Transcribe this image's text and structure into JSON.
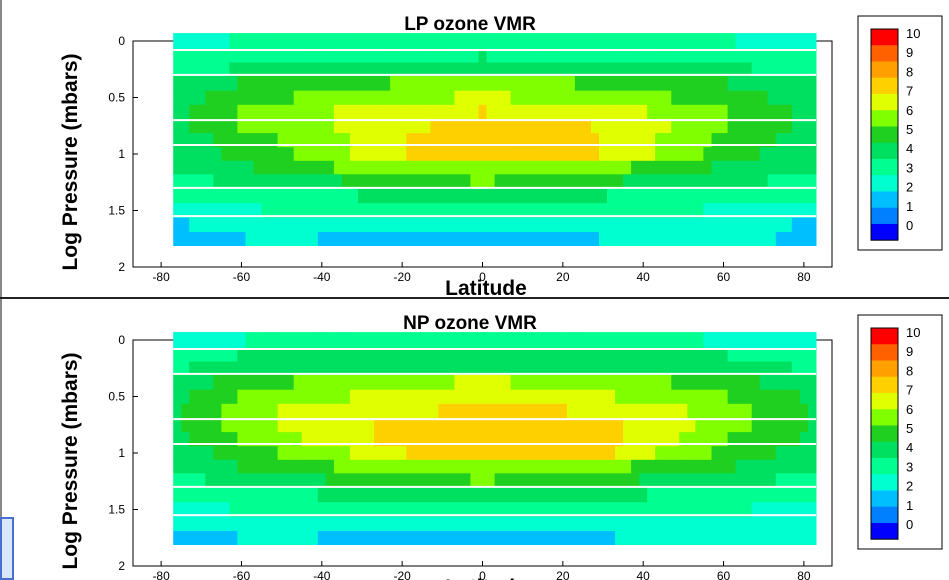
{
  "colors": {
    "scale": [
      "#0000ff",
      "#0080ff",
      "#00bfff",
      "#00ffd0",
      "#00ff90",
      "#00e060",
      "#20d020",
      "#80ff00",
      "#e0ff00",
      "#ffd000",
      "#ff8000",
      "#ff0000"
    ]
  },
  "chart_data": [
    {
      "type": "heatmap",
      "title": "LP ozone VMR",
      "xlabel": "Latitude",
      "ylabel": "Log Pressure (mbars)",
      "xlim": [
        -87,
        87
      ],
      "ylim": [
        0,
        2
      ],
      "x_ticks": [
        "-80",
        "-60",
        "-40",
        "-20",
        "0",
        "20",
        "40",
        "60",
        "80"
      ],
      "y_ticks": [
        "0",
        "0.5",
        "1",
        "1.5",
        "2"
      ],
      "legend_labels": [
        "10",
        "9",
        "8",
        "7",
        "6",
        "5",
        "4",
        "3",
        "2",
        "1",
        "0"
      ],
      "legend_placement": "right",
      "lat_range": [
        -77,
        83
      ],
      "rows": [
        {
          "y": 0.0,
          "profile": [
            [
              -77,
              3
            ],
            [
              -55,
              3.8
            ],
            [
              50,
              3.8
            ],
            [
              83,
              3
            ]
          ]
        },
        {
          "y": 0.14,
          "profile": [
            [
              -77,
              3.8
            ],
            [
              -60,
              4.2
            ],
            [
              0,
              4.5
            ],
            [
              60,
              4.2
            ],
            [
              83,
              3.8
            ]
          ]
        },
        {
          "y": 0.24,
          "profile": [
            [
              -77,
              4.2
            ],
            [
              -50,
              4.8
            ],
            [
              0,
              5
            ],
            [
              50,
              4.8
            ],
            [
              83,
              4.2
            ]
          ]
        },
        {
          "y": 0.38,
          "profile": [
            [
              -77,
              4.6
            ],
            [
              -60,
              5.5
            ],
            [
              -30,
              6.4
            ],
            [
              0,
              6.8
            ],
            [
              30,
              6.4
            ],
            [
              60,
              5.5
            ],
            [
              83,
              4.6
            ]
          ]
        },
        {
          "y": 0.5,
          "profile": [
            [
              -77,
              5
            ],
            [
              -60,
              6
            ],
            [
              -30,
              7.2
            ],
            [
              0,
              7.6
            ],
            [
              30,
              7.2
            ],
            [
              60,
              6
            ],
            [
              83,
              5
            ]
          ]
        },
        {
          "y": 0.63,
          "profile": [
            [
              -77,
              5.2
            ],
            [
              -60,
              6.5
            ],
            [
              -35,
              7.6
            ],
            [
              -10,
              8.2
            ],
            [
              0,
              8.5
            ],
            [
              20,
              8.2
            ],
            [
              40,
              7.6
            ],
            [
              60,
              6.5
            ],
            [
              83,
              5.2
            ]
          ]
        },
        {
          "y": 0.75,
          "profile": [
            [
              -77,
              5.2
            ],
            [
              -60,
              6.5
            ],
            [
              -35,
              7.6
            ],
            [
              -10,
              8.6
            ],
            [
              0,
              9.0
            ],
            [
              25,
              8.6
            ],
            [
              45,
              7.6
            ],
            [
              60,
              6.5
            ],
            [
              83,
              5.2
            ]
          ]
        },
        {
          "y": 0.88,
          "profile": [
            [
              -77,
              5
            ],
            [
              -55,
              6.2
            ],
            [
              -35,
              7.4
            ],
            [
              -15,
              8.8
            ],
            [
              5,
              9.3
            ],
            [
              25,
              8.8
            ],
            [
              45,
              7.4
            ],
            [
              60,
              6.2
            ],
            [
              83,
              5
            ]
          ]
        },
        {
          "y": 1.0,
          "profile": [
            [
              -77,
              4.8
            ],
            [
              -55,
              6
            ],
            [
              -35,
              7.4
            ],
            [
              -15,
              8.8
            ],
            [
              5,
              9.5
            ],
            [
              25,
              8.8
            ],
            [
              45,
              7.4
            ],
            [
              60,
              6
            ],
            [
              83,
              4.8
            ]
          ]
        },
        {
          "y": 1.12,
          "profile": [
            [
              -77,
              4.6
            ],
            [
              -55,
              5.6
            ],
            [
              -30,
              6.8
            ],
            [
              0,
              7.4
            ],
            [
              30,
              6.8
            ],
            [
              55,
              5.6
            ],
            [
              83,
              4.6
            ]
          ]
        },
        {
          "y": 1.24,
          "profile": [
            [
              -77,
              4.2
            ],
            [
              -50,
              5
            ],
            [
              -20,
              6
            ],
            [
              0,
              6.6
            ],
            [
              20,
              6
            ],
            [
              50,
              5
            ],
            [
              83,
              4.2
            ]
          ]
        },
        {
          "y": 1.37,
          "profile": [
            [
              -77,
              3.6
            ],
            [
              -50,
              4.3
            ],
            [
              0,
              4.8
            ],
            [
              50,
              4.3
            ],
            [
              83,
              3.6
            ]
          ]
        },
        {
          "y": 1.5,
          "profile": [
            [
              -77,
              3.0
            ],
            [
              -50,
              3.6
            ],
            [
              0,
              4.0
            ],
            [
              50,
              3.6
            ],
            [
              83,
              3.0
            ]
          ]
        },
        {
          "y": 1.63,
          "profile": [
            [
              -77,
              2.4
            ],
            [
              -50,
              3.0
            ],
            [
              -10,
              2.6
            ],
            [
              10,
              2.6
            ],
            [
              50,
              3.0
            ],
            [
              83,
              2.4
            ]
          ]
        },
        {
          "y": 1.75,
          "profile": [
            [
              -77,
              1.8
            ],
            [
              -50,
              2.8
            ],
            [
              -20,
              1.8
            ],
            [
              5,
              1.8
            ],
            [
              40,
              2.8
            ],
            [
              83,
              2.4
            ]
          ]
        }
      ]
    },
    {
      "type": "heatmap",
      "title": "NP ozone VMR",
      "xlabel": "Latitude",
      "ylabel": "Log Pressure (mbars)",
      "xlim": [
        -87,
        87
      ],
      "ylim": [
        0,
        2
      ],
      "x_ticks": [
        "-80",
        "-60",
        "-40",
        "-20",
        "0",
        "20",
        "40",
        "60",
        "80"
      ],
      "y_ticks": [
        "0",
        "0.5",
        "1",
        "1.5",
        "2"
      ],
      "legend_labels": [
        "10",
        "9",
        "8",
        "7",
        "6",
        "5",
        "4",
        "3",
        "2",
        "1",
        "0"
      ],
      "legend_placement": "right",
      "lat_range": [
        -77,
        83
      ],
      "rows": [
        {
          "y": 0.0,
          "profile": [
            [
              -77,
              3
            ],
            [
              -55,
              3.6
            ],
            [
              0,
              4
            ],
            [
              50,
              3.6
            ],
            [
              83,
              3
            ]
          ]
        },
        {
          "y": 0.14,
          "profile": [
            [
              -77,
              4.0
            ],
            [
              -60,
              4.5
            ],
            [
              0,
              4.8
            ],
            [
              60,
              4.5
            ],
            [
              83,
              4.0
            ]
          ]
        },
        {
          "y": 0.24,
          "profile": [
            [
              -77,
              4.4
            ],
            [
              -50,
              5.0
            ],
            [
              0,
              5.4
            ],
            [
              50,
              5.0
            ],
            [
              83,
              4.4
            ]
          ]
        },
        {
          "y": 0.38,
          "profile": [
            [
              -77,
              4.8
            ],
            [
              -60,
              6.0
            ],
            [
              -30,
              7.2
            ],
            [
              0,
              7.6
            ],
            [
              30,
              7.2
            ],
            [
              60,
              6.0
            ],
            [
              83,
              4.8
            ]
          ]
        },
        {
          "y": 0.5,
          "profile": [
            [
              -77,
              5.2
            ],
            [
              -60,
              6.6
            ],
            [
              -30,
              7.6
            ],
            [
              0,
              8.0
            ],
            [
              30,
              7.6
            ],
            [
              60,
              6.6
            ],
            [
              83,
              5.2
            ]
          ]
        },
        {
          "y": 0.63,
          "profile": [
            [
              -77,
              5.4
            ],
            [
              -60,
              7.0
            ],
            [
              -40,
              8.0
            ],
            [
              -10,
              8.5
            ],
            [
              10,
              8.8
            ],
            [
              40,
              8.0
            ],
            [
              60,
              7.0
            ],
            [
              83,
              5.4
            ]
          ]
        },
        {
          "y": 0.75,
          "profile": [
            [
              -77,
              5.4
            ],
            [
              -60,
              7.0
            ],
            [
              -40,
              8.0
            ],
            [
              -20,
              8.8
            ],
            [
              5,
              9.2
            ],
            [
              30,
              8.8
            ],
            [
              45,
              8.0
            ],
            [
              60,
              7.0
            ],
            [
              83,
              5.4
            ]
          ]
        },
        {
          "y": 0.88,
          "profile": [
            [
              -77,
              5.2
            ],
            [
              -60,
              6.6
            ],
            [
              -40,
              7.8
            ],
            [
              -20,
              8.8
            ],
            [
              5,
              9.3
            ],
            [
              30,
              8.8
            ],
            [
              45,
              7.8
            ],
            [
              60,
              6.6
            ],
            [
              83,
              5.2
            ]
          ]
        },
        {
          "y": 1.0,
          "profile": [
            [
              -77,
              5.0
            ],
            [
              -55,
              6.2
            ],
            [
              -35,
              7.4
            ],
            [
              -15,
              8.8
            ],
            [
              5,
              9.5
            ],
            [
              25,
              9.2
            ],
            [
              45,
              7.4
            ],
            [
              60,
              6.2
            ],
            [
              83,
              5.0
            ]
          ]
        },
        {
          "y": 1.12,
          "profile": [
            [
              -77,
              4.6
            ],
            [
              -55,
              5.8
            ],
            [
              -30,
              6.8
            ],
            [
              0,
              7.4
            ],
            [
              30,
              6.8
            ],
            [
              55,
              5.8
            ],
            [
              83,
              4.6
            ]
          ]
        },
        {
          "y": 1.24,
          "profile": [
            [
              -77,
              4.2
            ],
            [
              -50,
              5.2
            ],
            [
              -20,
              6.0
            ],
            [
              0,
              6.6
            ],
            [
              20,
              6.0
            ],
            [
              50,
              5.2
            ],
            [
              83,
              4.2
            ]
          ]
        },
        {
          "y": 1.37,
          "profile": [
            [
              -77,
              3.6
            ],
            [
              -50,
              4.4
            ],
            [
              0,
              5.0
            ],
            [
              50,
              4.4
            ],
            [
              83,
              3.6
            ]
          ]
        },
        {
          "y": 1.5,
          "profile": [
            [
              -77,
              3.2
            ],
            [
              -50,
              3.8
            ],
            [
              0,
              4.2
            ],
            [
              50,
              3.8
            ],
            [
              83,
              3.2
            ]
          ]
        },
        {
          "y": 1.63,
          "profile": [
            [
              -77,
              2.6
            ],
            [
              -50,
              3.2
            ],
            [
              -10,
              2.8
            ],
            [
              10,
              2.8
            ],
            [
              50,
              3.2
            ],
            [
              83,
              2.6
            ]
          ]
        },
        {
          "y": 1.75,
          "profile": [
            [
              -77,
              2.0
            ],
            [
              -50,
              2.8
            ],
            [
              -25,
              2.0
            ],
            [
              20,
              2.0
            ],
            [
              40,
              2.8
            ],
            [
              83,
              2.6
            ]
          ]
        }
      ]
    }
  ]
}
